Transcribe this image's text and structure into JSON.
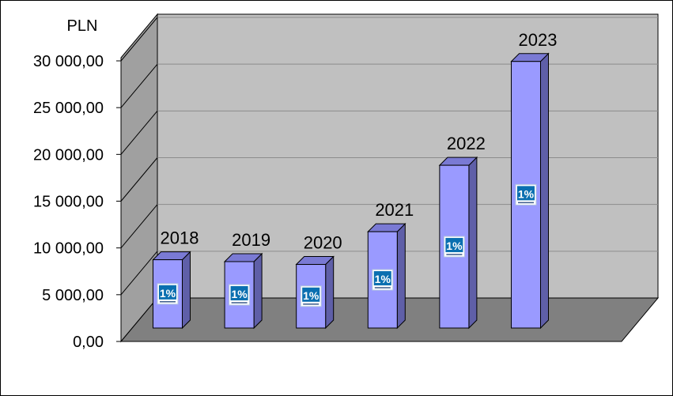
{
  "chart_data": {
    "type": "bar",
    "title": "",
    "unit_label": "PLN",
    "xlabel": "",
    "ylabel": "",
    "ylim": [
      0,
      30000
    ],
    "y_ticks": [
      0,
      5000,
      10000,
      15000,
      20000,
      25000,
      30000
    ],
    "y_tick_labels": [
      "0,00",
      "5 000,00",
      "10 000,00",
      "15 000,00",
      "20 000,00",
      "25 000,00",
      "30 000,00"
    ],
    "categories": [
      "2018",
      "2019",
      "2020",
      "2021",
      "2022",
      "2023"
    ],
    "values": [
      7300,
      7100,
      6800,
      10300,
      17400,
      28500
    ],
    "bar_icon": "1-percent-logo-icon",
    "grid": true,
    "style": "3d-column",
    "colors": {
      "bar_front": "#9a9aff",
      "bar_side": "#5f5fa8",
      "bar_top": "#7a7ad4",
      "back_wall": "#c0c0c0",
      "side_wall": "#a0a0a0",
      "floor": "#808080",
      "gridline": "#8c8c8c",
      "icon_bg": "#0a6fb0"
    }
  }
}
